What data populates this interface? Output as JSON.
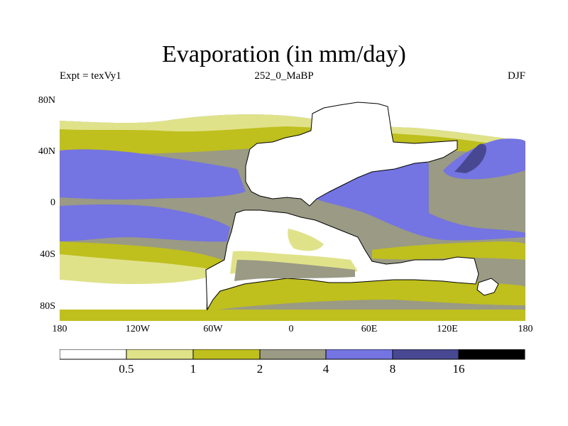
{
  "title": "Evaporation (in mm/day)",
  "subtitle": {
    "left": "Expt = texVy1",
    "center": "252_0_MaBP",
    "right": "DJF"
  },
  "axes": {
    "y_labels": [
      "80N",
      "40N",
      "0",
      "40S",
      "80S"
    ],
    "x_labels": [
      "180",
      "120W",
      "60W",
      "0",
      "60E",
      "120E",
      "180"
    ]
  },
  "legend": {
    "thresholds": [
      "0.5",
      "1",
      "2",
      "4",
      "8",
      "16"
    ],
    "colors": [
      "#ffffff",
      "#e0e28a",
      "#bfbf1e",
      "#9a9a85",
      "#7474e2",
      "#484892",
      "#000000"
    ]
  },
  "chart_data": {
    "type": "heatmap",
    "title": "Evaporation (in mm/day)",
    "variable": "Evaporation",
    "units": "mm/day",
    "x_range": [
      -180,
      180
    ],
    "y_range": [
      -90,
      90
    ],
    "contour_levels": [
      0.5,
      1,
      2,
      4,
      8,
      16
    ]
  }
}
